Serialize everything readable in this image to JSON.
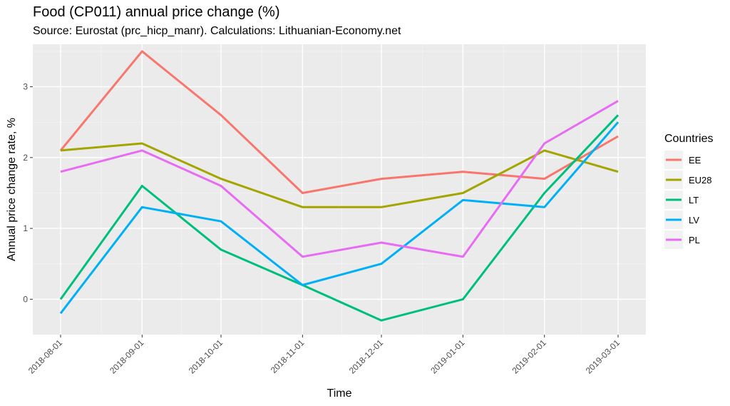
{
  "chart_data": {
    "type": "line",
    "title": "Food (CP011) annual price change (%)",
    "subtitle": "Source: Eurostat (prc_hicp_manr). Calculations: Lithuanian-Economy.net",
    "xlabel": "Time",
    "ylabel": "Annual price change rate, %",
    "x": [
      "2018-08-01",
      "2018-09-01",
      "2018-10-01",
      "2018-11-01",
      "2018-12-01",
      "2019-01-01",
      "2019-02-01",
      "2019-03-01"
    ],
    "x_days": [
      0,
      31,
      61,
      92,
      122,
      153,
      184,
      212
    ],
    "ylim": [
      -0.5,
      3.6
    ],
    "yticks": [
      0,
      1,
      2,
      3
    ],
    "grid": true,
    "legend_title": "Countries",
    "legend_position": "right",
    "series": [
      {
        "name": "EE",
        "color": "#F8766D",
        "values": [
          2.1,
          3.5,
          2.6,
          1.5,
          1.7,
          1.8,
          1.7,
          2.3
        ]
      },
      {
        "name": "EU28",
        "color": "#A3A500",
        "values": [
          2.1,
          2.2,
          1.7,
          1.3,
          1.3,
          1.5,
          2.1,
          1.8
        ]
      },
      {
        "name": "LT",
        "color": "#00BF7D",
        "values": [
          0.0,
          1.6,
          0.7,
          0.2,
          -0.3,
          0.0,
          1.5,
          2.6
        ]
      },
      {
        "name": "LV",
        "color": "#00B0F6",
        "values": [
          -0.2,
          1.3,
          1.1,
          0.2,
          0.5,
          1.4,
          1.3,
          2.5
        ]
      },
      {
        "name": "PL",
        "color": "#E76BF3",
        "values": [
          1.8,
          2.1,
          1.6,
          0.6,
          0.8,
          0.6,
          2.2,
          2.8
        ]
      }
    ]
  }
}
